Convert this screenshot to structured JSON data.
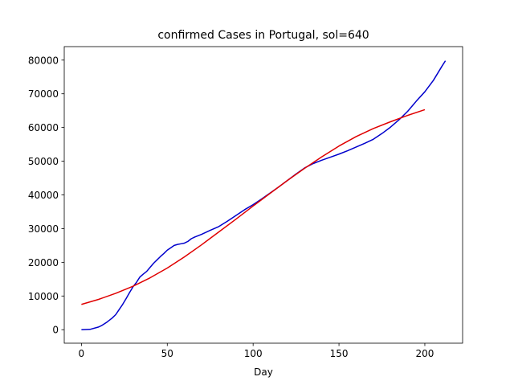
{
  "chart_data": {
    "type": "line",
    "title": "confirmed Cases in Portugal, sol=640",
    "xlabel": "Day",
    "ylabel": "",
    "xlim": [
      -10,
      222
    ],
    "ylim": [
      -4000,
      84000
    ],
    "xticks": [
      0,
      50,
      100,
      150,
      200
    ],
    "yticks": [
      0,
      10000,
      20000,
      30000,
      40000,
      50000,
      60000,
      70000,
      80000
    ],
    "grid": false,
    "legend": "none",
    "series": [
      {
        "color": "#0000cc",
        "x": [
          0,
          5,
          10,
          12,
          15,
          18,
          20,
          22,
          24,
          26,
          28,
          30,
          32,
          34,
          36,
          38,
          40,
          42,
          44,
          46,
          48,
          50,
          52,
          54,
          56,
          58,
          60,
          62,
          64,
          66,
          70,
          75,
          80,
          85,
          90,
          95,
          100,
          105,
          110,
          115,
          120,
          125,
          130,
          135,
          140,
          145,
          150,
          155,
          160,
          165,
          170,
          175,
          180,
          185,
          190,
          195,
          200,
          205,
          210,
          212
        ],
        "y": [
          0,
          100,
          800,
          1300,
          2300,
          3500,
          4500,
          6000,
          7500,
          9200,
          11000,
          12700,
          14000,
          15600,
          16500,
          17300,
          18500,
          19700,
          20700,
          21700,
          22600,
          23600,
          24300,
          25000,
          25300,
          25500,
          25700,
          26200,
          27000,
          27500,
          28300,
          29500,
          30600,
          32200,
          33900,
          35600,
          37100,
          38800,
          40600,
          42400,
          44300,
          46200,
          48000,
          49300,
          50300,
          51200,
          52100,
          53100,
          54200,
          55300,
          56500,
          58200,
          60100,
          62300,
          64800,
          67800,
          70600,
          74000,
          78200,
          79800
        ]
      },
      {
        "color": "#e00000",
        "x": [
          0,
          10,
          20,
          30,
          40,
          50,
          60,
          70,
          80,
          90,
          100,
          110,
          120,
          130,
          140,
          150,
          160,
          170,
          180,
          190,
          200
        ],
        "y": [
          7500,
          9000,
          10800,
          12900,
          15400,
          18300,
          21600,
          25200,
          29000,
          32800,
          36700,
          40500,
          44300,
          47900,
          51300,
          54500,
          57300,
          59700,
          61700,
          63600,
          65300
        ]
      }
    ]
  }
}
